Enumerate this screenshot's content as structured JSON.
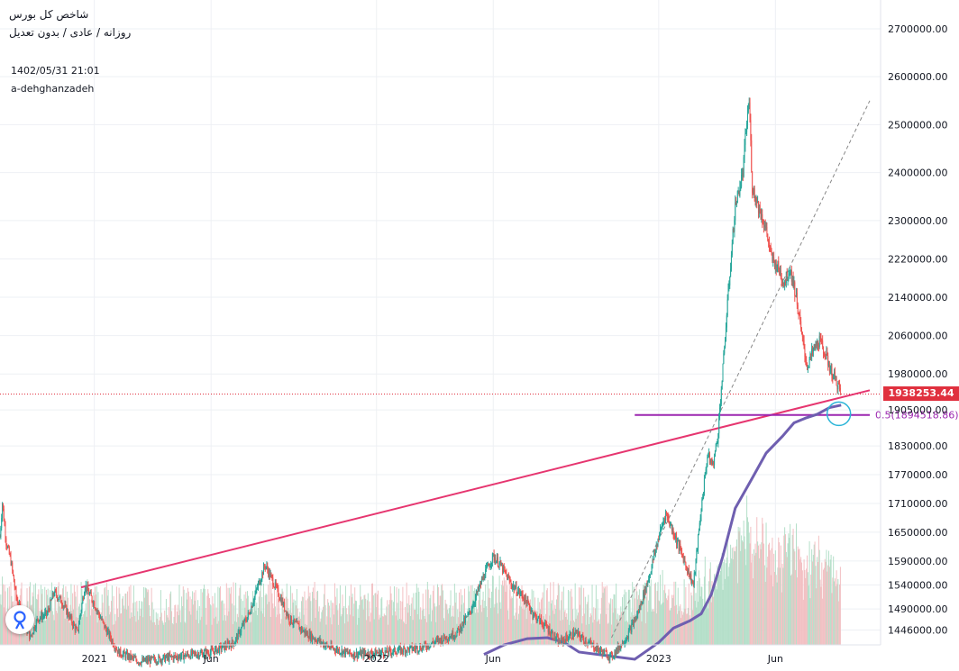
{
  "header": {
    "title": "شاخص کل بورس",
    "subtitle": "روزانه / عادی / بدون تعدیل",
    "datetime": "1402/05/31 21:01",
    "author": "a-dehghanzadeh"
  },
  "colors": {
    "price_line": "#e0303e",
    "trendline": "#e6356f",
    "fib_line": "#9c27b0",
    "moving_average": "#6f5fb0",
    "circle": "#2bb5d8",
    "vol_up": "#b4dfc9",
    "vol_down": "#f2c0c3"
  },
  "chart_data": {
    "type": "candlestick",
    "y_axis": {
      "ylim": [
        1415000,
        2760000
      ],
      "ticks": [
        "2700000.00",
        "2600000.00",
        "2500000.00",
        "2400000.00",
        "2300000.00",
        "2220000.00",
        "2140000.00",
        "2060000.00",
        "1980000.00",
        "1905000.00",
        "1830000.00",
        "1770000.00",
        "1710000.00",
        "1650000.00",
        "1590000.00",
        "1540000.00",
        "1490000.00",
        "1446000.00"
      ],
      "tick_values": [
        2700000,
        2600000,
        2500000,
        2400000,
        2300000,
        2220000,
        2140000,
        2060000,
        1980000,
        1905000,
        1830000,
        1770000,
        1710000,
        1650000,
        1590000,
        1540000,
        1490000,
        1446000
      ]
    },
    "x_axis": {
      "range": [
        "2020-09-01",
        "2023-10-15"
      ],
      "labels": [
        "2021",
        "Jun",
        "2022",
        "Jun",
        "2023",
        "Jun"
      ],
      "label_dates": [
        "2021-01-01",
        "2021-06-01",
        "2022-01-01",
        "2022-06-01",
        "2023-01-01",
        "2023-06-01"
      ]
    },
    "grid": true,
    "last_price": "1938253.44",
    "last_price_value": 1938253.44,
    "fib_label": "0.5(1894518.86)",
    "fib_level": 1894518.86,
    "fib_range": [
      "2022-12-01",
      "2023-10-01"
    ],
    "trendline": {
      "from": [
        "2020-12-15",
        1535000
      ],
      "to": [
        "2023-10-01",
        1946000
      ]
    },
    "dashed_line": {
      "from": [
        "2022-11-01",
        1430000
      ],
      "to": [
        "2023-10-01",
        2550000
      ]
    },
    "circle_at": [
      "2023-08-22",
      1897000
    ],
    "price_path": [
      [
        "2020-09-01",
        1640000
      ],
      [
        "2020-09-04",
        1712000
      ],
      [
        "2020-09-09",
        1630000
      ],
      [
        "2020-09-15",
        1590000
      ],
      [
        "2020-09-22",
        1515000
      ],
      [
        "2020-09-30",
        1470000
      ],
      [
        "2020-10-10",
        1430000
      ],
      [
        "2020-10-20",
        1470000
      ],
      [
        "2020-11-01",
        1480000
      ],
      [
        "2020-11-10",
        1525000
      ],
      [
        "2020-11-20",
        1505000
      ],
      [
        "2020-12-01",
        1470000
      ],
      [
        "2020-12-10",
        1440000
      ],
      [
        "2020-12-20",
        1540000
      ],
      [
        "2021-01-01",
        1500000
      ],
      [
        "2021-01-15",
        1450000
      ],
      [
        "2021-02-01",
        1400000
      ],
      [
        "2021-03-01",
        1380000
      ],
      [
        "2021-04-15",
        1390000
      ],
      [
        "2021-06-01",
        1400000
      ],
      [
        "2021-07-01",
        1420000
      ],
      [
        "2021-07-20",
        1480000
      ],
      [
        "2021-08-01",
        1540000
      ],
      [
        "2021-08-10",
        1582000
      ],
      [
        "2021-08-25",
        1530000
      ],
      [
        "2021-09-10",
        1470000
      ],
      [
        "2021-10-01",
        1440000
      ],
      [
        "2021-11-01",
        1410000
      ],
      [
        "2021-12-01",
        1395000
      ],
      [
        "2022-01-15",
        1400000
      ],
      [
        "2022-03-01",
        1410000
      ],
      [
        "2022-04-15",
        1440000
      ],
      [
        "2022-05-01",
        1480000
      ],
      [
        "2022-05-20",
        1560000
      ],
      [
        "2022-06-01",
        1600000
      ],
      [
        "2022-06-10",
        1582000
      ],
      [
        "2022-06-25",
        1540000
      ],
      [
        "2022-07-10",
        1515000
      ],
      [
        "2022-07-25",
        1475000
      ],
      [
        "2022-08-10",
        1450000
      ],
      [
        "2022-08-25",
        1420000
      ],
      [
        "2022-09-15",
        1440000
      ],
      [
        "2022-10-01",
        1420000
      ],
      [
        "2022-10-20",
        1400000
      ],
      [
        "2022-11-01",
        1390000
      ],
      [
        "2022-11-20",
        1430000
      ],
      [
        "2022-12-05",
        1480000
      ],
      [
        "2022-12-20",
        1560000
      ],
      [
        "2023-01-01",
        1640000
      ],
      [
        "2023-01-10",
        1690000
      ],
      [
        "2023-01-20",
        1650000
      ],
      [
        "2023-02-01",
        1600000
      ],
      [
        "2023-02-10",
        1560000
      ],
      [
        "2023-02-15",
        1540000
      ],
      [
        "2023-02-25",
        1700000
      ],
      [
        "2023-03-05",
        1810000
      ],
      [
        "2023-03-12",
        1790000
      ],
      [
        "2023-03-18",
        1845000
      ],
      [
        "2023-03-25",
        1990000
      ],
      [
        "2023-04-01",
        2150000
      ],
      [
        "2023-04-10",
        2330000
      ],
      [
        "2023-04-20",
        2400000
      ],
      [
        "2023-04-24",
        2490000
      ],
      [
        "2023-04-28",
        2550000
      ],
      [
        "2023-05-02",
        2370000
      ],
      [
        "2023-05-10",
        2330000
      ],
      [
        "2023-05-20",
        2280000
      ],
      [
        "2023-05-27",
        2220000
      ],
      [
        "2023-06-05",
        2200000
      ],
      [
        "2023-06-12",
        2170000
      ],
      [
        "2023-06-20",
        2200000
      ],
      [
        "2023-06-28",
        2140000
      ],
      [
        "2023-07-05",
        2060000
      ],
      [
        "2023-07-12",
        1995000
      ],
      [
        "2023-07-20",
        2030000
      ],
      [
        "2023-07-28",
        2050000
      ],
      [
        "2023-08-05",
        2020000
      ],
      [
        "2023-08-12",
        1985000
      ],
      [
        "2023-08-20",
        1960000
      ],
      [
        "2023-08-25",
        1938253
      ]
    ],
    "moving_average": [
      [
        "2022-05-20",
        1395000
      ],
      [
        "2022-06-15",
        1415000
      ],
      [
        "2022-07-15",
        1428000
      ],
      [
        "2022-08-10",
        1430000
      ],
      [
        "2022-09-01",
        1420000
      ],
      [
        "2022-09-20",
        1400000
      ],
      [
        "2022-12-01",
        1385000
      ],
      [
        "2023-01-01",
        1420000
      ],
      [
        "2023-01-20",
        1450000
      ],
      [
        "2023-02-10",
        1465000
      ],
      [
        "2023-02-25",
        1480000
      ],
      [
        "2023-03-10",
        1520000
      ],
      [
        "2023-03-25",
        1600000
      ],
      [
        "2023-04-10",
        1700000
      ],
      [
        "2023-05-01",
        1760000
      ],
      [
        "2023-05-20",
        1815000
      ],
      [
        "2023-06-10",
        1850000
      ],
      [
        "2023-06-25",
        1878000
      ],
      [
        "2023-07-10",
        1888000
      ],
      [
        "2023-07-25",
        1896000
      ],
      [
        "2023-08-10",
        1910000
      ],
      [
        "2023-08-25",
        1915000
      ]
    ]
  }
}
